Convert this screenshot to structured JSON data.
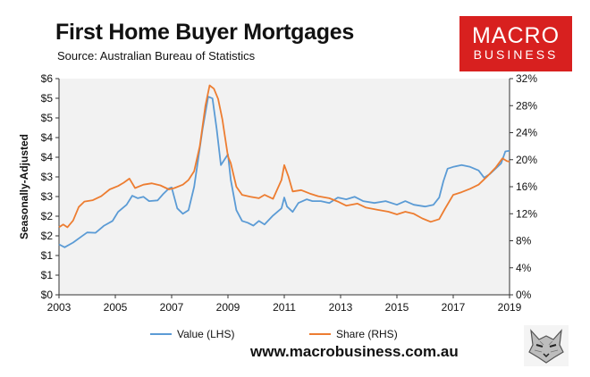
{
  "header": {
    "title": "First Home Buyer Mortgages",
    "subtitle": "Source: Australian Bureau of Statistics"
  },
  "logo": {
    "line1": "MACRO",
    "line2": "BUSINESS",
    "color": "#d8201f"
  },
  "footer": {
    "website": "www.macrobusiness.com.au",
    "wolf_icon": "wolf-head-icon"
  },
  "chart_data": {
    "type": "line",
    "title": "First Home Buyer Mortgages",
    "ylabel": "Seasonally-Adjusted",
    "y2label": "",
    "xlabel": "",
    "xlim": [
      2003,
      2019
    ],
    "ylim": [
      0,
      6
    ],
    "y2lim": [
      0,
      32
    ],
    "x_ticks": [
      "2003",
      "2005",
      "2007",
      "2009",
      "2011",
      "2013",
      "2015",
      "2017",
      "2019"
    ],
    "y_ticks": [
      "$0",
      "$1",
      "$1",
      "$2",
      "$2",
      "$3",
      "$3",
      "$4",
      "$4",
      "$5",
      "$5",
      "$6"
    ],
    "y2_ticks": [
      "0%",
      "4%",
      "8%",
      "12%",
      "16%",
      "20%",
      "24%",
      "28%",
      "32%"
    ],
    "grid": false,
    "legend": "bottom",
    "series": [
      {
        "name": "Value (LHS)",
        "axis": "left",
        "color": "#5b9bd5",
        "points": [
          [
            2003.0,
            1.4
          ],
          [
            2003.2,
            1.32
          ],
          [
            2003.5,
            1.45
          ],
          [
            2003.8,
            1.62
          ],
          [
            2004.0,
            1.73
          ],
          [
            2004.3,
            1.72
          ],
          [
            2004.6,
            1.92
          ],
          [
            2004.9,
            2.05
          ],
          [
            2005.1,
            2.3
          ],
          [
            2005.4,
            2.5
          ],
          [
            2005.6,
            2.75
          ],
          [
            2005.8,
            2.68
          ],
          [
            2006.0,
            2.72
          ],
          [
            2006.2,
            2.6
          ],
          [
            2006.5,
            2.62
          ],
          [
            2006.7,
            2.8
          ],
          [
            2006.9,
            2.95
          ],
          [
            2007.0,
            2.98
          ],
          [
            2007.2,
            2.4
          ],
          [
            2007.4,
            2.25
          ],
          [
            2007.6,
            2.35
          ],
          [
            2007.8,
            3.0
          ],
          [
            2007.95,
            3.8
          ],
          [
            2008.1,
            4.6
          ],
          [
            2008.3,
            5.5
          ],
          [
            2008.45,
            5.45
          ],
          [
            2008.6,
            4.6
          ],
          [
            2008.75,
            3.6
          ],
          [
            2009.0,
            3.9
          ],
          [
            2009.1,
            3.2
          ],
          [
            2009.3,
            2.35
          ],
          [
            2009.5,
            2.05
          ],
          [
            2009.7,
            2.0
          ],
          [
            2009.9,
            1.92
          ],
          [
            2010.1,
            2.05
          ],
          [
            2010.3,
            1.95
          ],
          [
            2010.6,
            2.2
          ],
          [
            2010.9,
            2.4
          ],
          [
            2011.0,
            2.7
          ],
          [
            2011.1,
            2.45
          ],
          [
            2011.3,
            2.3
          ],
          [
            2011.5,
            2.55
          ],
          [
            2011.8,
            2.65
          ],
          [
            2012.0,
            2.6
          ],
          [
            2012.3,
            2.6
          ],
          [
            2012.6,
            2.55
          ],
          [
            2012.9,
            2.7
          ],
          [
            2013.2,
            2.65
          ],
          [
            2013.5,
            2.72
          ],
          [
            2013.8,
            2.6
          ],
          [
            2014.2,
            2.55
          ],
          [
            2014.6,
            2.6
          ],
          [
            2015.0,
            2.5
          ],
          [
            2015.3,
            2.6
          ],
          [
            2015.6,
            2.5
          ],
          [
            2016.0,
            2.45
          ],
          [
            2016.3,
            2.5
          ],
          [
            2016.5,
            2.7
          ],
          [
            2016.65,
            3.15
          ],
          [
            2016.8,
            3.5
          ],
          [
            2017.0,
            3.55
          ],
          [
            2017.3,
            3.6
          ],
          [
            2017.6,
            3.55
          ],
          [
            2017.9,
            3.45
          ],
          [
            2018.1,
            3.25
          ],
          [
            2018.3,
            3.35
          ],
          [
            2018.5,
            3.5
          ],
          [
            2018.7,
            3.65
          ],
          [
            2018.85,
            3.98
          ],
          [
            2019.0,
            4.0
          ]
        ]
      },
      {
        "name": "Share (RHS)",
        "axis": "right",
        "color": "#ed7d31",
        "points": [
          [
            2003.0,
            10.0
          ],
          [
            2003.15,
            10.4
          ],
          [
            2003.3,
            10.0
          ],
          [
            2003.5,
            11.0
          ],
          [
            2003.7,
            13.0
          ],
          [
            2003.9,
            13.8
          ],
          [
            2004.2,
            14.0
          ],
          [
            2004.5,
            14.6
          ],
          [
            2004.8,
            15.6
          ],
          [
            2005.1,
            16.1
          ],
          [
            2005.3,
            16.6
          ],
          [
            2005.5,
            17.2
          ],
          [
            2005.7,
            15.8
          ],
          [
            2006.0,
            16.3
          ],
          [
            2006.3,
            16.5
          ],
          [
            2006.6,
            16.2
          ],
          [
            2006.9,
            15.6
          ],
          [
            2007.1,
            15.8
          ],
          [
            2007.4,
            16.3
          ],
          [
            2007.6,
            17.0
          ],
          [
            2007.8,
            18.3
          ],
          [
            2008.0,
            22.0
          ],
          [
            2008.2,
            28.0
          ],
          [
            2008.35,
            31.0
          ],
          [
            2008.5,
            30.5
          ],
          [
            2008.65,
            29.0
          ],
          [
            2008.8,
            26.0
          ],
          [
            2009.0,
            20.5
          ],
          [
            2009.1,
            19.5
          ],
          [
            2009.3,
            16.0
          ],
          [
            2009.5,
            14.8
          ],
          [
            2009.8,
            14.5
          ],
          [
            2010.1,
            14.3
          ],
          [
            2010.3,
            14.8
          ],
          [
            2010.6,
            14.2
          ],
          [
            2010.9,
            17.0
          ],
          [
            2011.0,
            19.2
          ],
          [
            2011.15,
            17.5
          ],
          [
            2011.3,
            15.3
          ],
          [
            2011.6,
            15.5
          ],
          [
            2011.9,
            15.0
          ],
          [
            2012.2,
            14.6
          ],
          [
            2012.6,
            14.3
          ],
          [
            2012.9,
            13.8
          ],
          [
            2013.2,
            13.2
          ],
          [
            2013.6,
            13.5
          ],
          [
            2013.9,
            12.9
          ],
          [
            2014.3,
            12.6
          ],
          [
            2014.7,
            12.3
          ],
          [
            2015.0,
            11.9
          ],
          [
            2015.3,
            12.3
          ],
          [
            2015.6,
            12.0
          ],
          [
            2015.9,
            11.3
          ],
          [
            2016.2,
            10.8
          ],
          [
            2016.5,
            11.2
          ],
          [
            2016.7,
            12.7
          ],
          [
            2017.0,
            14.8
          ],
          [
            2017.3,
            15.2
          ],
          [
            2017.6,
            15.7
          ],
          [
            2017.9,
            16.3
          ],
          [
            2018.2,
            17.5
          ],
          [
            2018.5,
            18.8
          ],
          [
            2018.75,
            20.2
          ],
          [
            2018.9,
            19.8
          ],
          [
            2019.0,
            19.7
          ]
        ]
      }
    ]
  }
}
